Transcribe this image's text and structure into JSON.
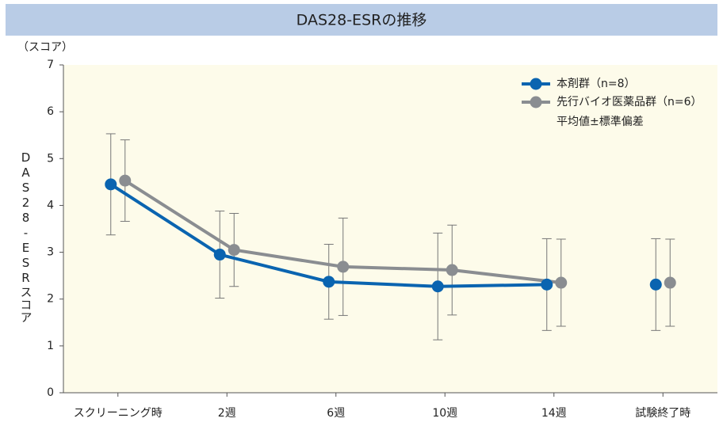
{
  "chart_data": {
    "type": "line",
    "title": "DAS28-ESRの推移",
    "y_unit": "（スコア）",
    "y_label": "DAS28-ESRスコア",
    "categories": [
      "スクリーニング時",
      "2週",
      "6週",
      "10週",
      "14週",
      "試験終了時"
    ],
    "series": [
      {
        "name": "本剤群（n=8）",
        "color": "#0a64b0",
        "values": [
          4.45,
          2.95,
          2.37,
          2.27,
          2.31,
          2.31
        ],
        "errors": [
          1.08,
          0.93,
          0.8,
          1.14,
          0.98,
          0.98
        ]
      },
      {
        "name": "先行バイオ医薬品群（n=6）",
        "color": "#8a8d91",
        "values": [
          4.53,
          3.05,
          2.69,
          2.62,
          2.35,
          2.35
        ],
        "errors": [
          0.87,
          0.78,
          1.04,
          0.96,
          0.93,
          0.93
        ]
      }
    ],
    "error_note": "平均値±標準偏差",
    "break_before_last": true,
    "ylim": [
      0,
      7
    ],
    "yticks": [
      0,
      1,
      2,
      3,
      4,
      5,
      6,
      7
    ],
    "background": "#fdfbea",
    "banner_color": "#b9cce6"
  }
}
